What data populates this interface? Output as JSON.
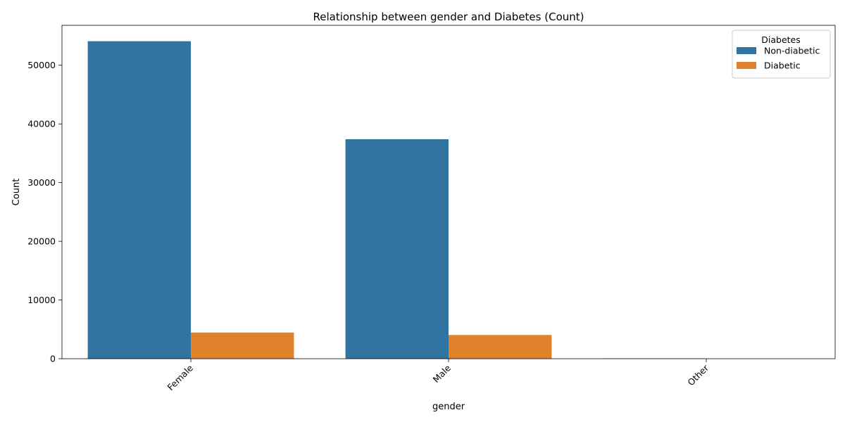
{
  "chart_data": {
    "type": "bar",
    "title": "Relationship between gender and Diabetes (Count)",
    "xlabel": "gender",
    "ylabel": "Count",
    "categories": [
      "Female",
      "Male",
      "Other"
    ],
    "series": [
      {
        "name": "Non-diabetic",
        "color": "#3274a1",
        "values": [
          54091,
          37391,
          18
        ]
      },
      {
        "name": "Diabetic",
        "color": "#e1812c",
        "values": [
          4461,
          4039,
          0
        ]
      }
    ],
    "ylim": [
      0,
      56800
    ],
    "yticks": [
      0,
      10000,
      20000,
      30000,
      40000,
      50000
    ],
    "legend": {
      "title": "Diabetes",
      "position": "top-right"
    },
    "grid": false
  }
}
